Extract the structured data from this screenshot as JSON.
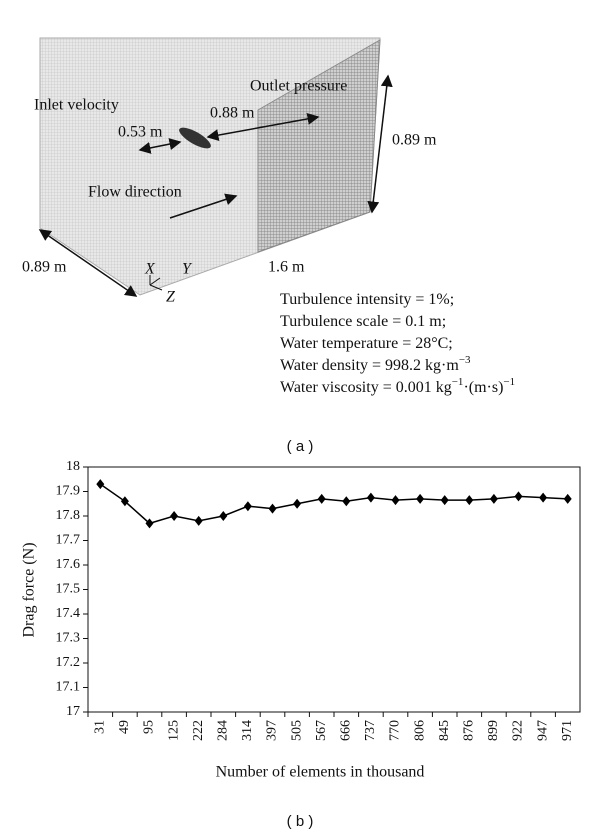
{
  "diagram": {
    "labels": {
      "inlet": "Inlet velocity",
      "outlet": "Outlet pressure",
      "d053": "0.53 m",
      "d088": "0.88 m",
      "height": "0.89 m",
      "width": "0.89 m",
      "length": "1.6 m",
      "flow": "Flow direction",
      "x": "X",
      "y": "Y",
      "z": "Z"
    },
    "parameters": [
      [
        {
          "t": "Turbulence intensity = 1%;"
        }
      ],
      [
        {
          "t": "Turbulence scale = 0.1 m;"
        }
      ],
      [
        {
          "t": "Water temperature = 28°C;"
        }
      ],
      [
        {
          "t": "Water density = 998.2 kg·m"
        },
        {
          "sup": "−3"
        }
      ],
      [
        {
          "t": "Water viscosity = 0.001 kg"
        },
        {
          "sup": "−1"
        },
        {
          "t": "·(m·s)"
        },
        {
          "sup": "−1"
        }
      ]
    ],
    "caption": "( a )"
  },
  "chart_data": {
    "type": "line",
    "caption": "( b )",
    "x_label": "Number of elements in thousand",
    "y_label": "Drag force (N)",
    "categories": [
      "31",
      "49",
      "95",
      "125",
      "222",
      "284",
      "314",
      "397",
      "505",
      "567",
      "666",
      "737",
      "770",
      "806",
      "845",
      "876",
      "899",
      "922",
      "947",
      "971"
    ],
    "series": [
      {
        "name": "Drag force",
        "color": "#000000",
        "values": [
          17.93,
          17.86,
          17.77,
          17.8,
          17.78,
          17.8,
          17.84,
          17.83,
          17.85,
          17.87,
          17.86,
          17.875,
          17.865,
          17.87,
          17.865,
          17.865,
          17.87,
          17.88,
          17.875,
          17.87
        ]
      }
    ],
    "ylim": [
      17,
      18
    ],
    "yticks": [
      17,
      17.1,
      17.2,
      17.3,
      17.4,
      17.5,
      17.6,
      17.7,
      17.8,
      17.9,
      18
    ],
    "grid": false
  }
}
